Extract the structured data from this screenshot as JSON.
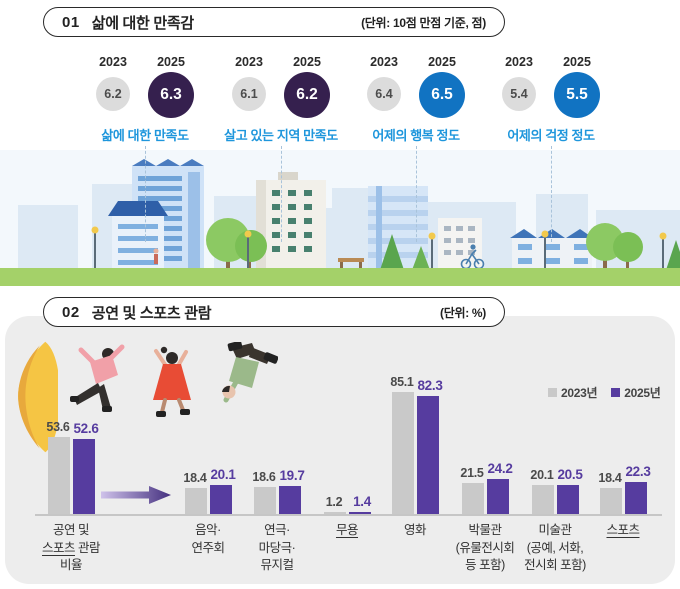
{
  "section1": {
    "number": "01",
    "title": "삶에 대한 만족감",
    "unit": "(단위: 10점 만점 기준, 점)",
    "year_left": "2023",
    "year_right": "2025",
    "groups": [
      {
        "label": "삶에 대한 만족도",
        "v2023": 6.2,
        "v2025": 6.3,
        "color_2025": "#35204E"
      },
      {
        "label": "살고 있는 지역 만족도",
        "v2023": 6.1,
        "v2025": 6.2,
        "color_2025": "#35204E"
      },
      {
        "label": "어제의 행복 정도",
        "v2023": 6.4,
        "v2025": 6.5,
        "color_2025": "#1173C2"
      },
      {
        "label": "어제의 걱정 정도",
        "v2023": 5.4,
        "v2025": 5.5,
        "color_2025": "#1173C2"
      }
    ]
  },
  "section2": {
    "number": "02",
    "title": "공연 및 스포츠 관람",
    "unit": "(단위: %)",
    "legend": [
      {
        "label": "2023년",
        "color": "#c9c9c9"
      },
      {
        "label": "2025년",
        "color": "#563C9F"
      }
    ],
    "groups": [
      {
        "v2023": 53.6,
        "v2025": 52.6,
        "label_lines": [
          [
            {
              "t": "공연 및"
            }
          ],
          [
            {
              "t": "스포츠",
              "u": true
            },
            {
              "t": " 관람"
            }
          ],
          [
            {
              "t": "비율"
            }
          ]
        ]
      },
      {
        "v2023": 18.4,
        "v2025": 20.1,
        "label_lines": [
          [
            {
              "t": "음악·"
            }
          ],
          [
            {
              "t": "연주회"
            }
          ]
        ]
      },
      {
        "v2023": 18.6,
        "v2025": 19.7,
        "label_lines": [
          [
            {
              "t": "연극·"
            }
          ],
          [
            {
              "t": "마당극·"
            }
          ],
          [
            {
              "t": "뮤지컬"
            }
          ]
        ]
      },
      {
        "v2023": 1.2,
        "v2025": 1.4,
        "label_lines": [
          [
            {
              "t": "무용",
              "u": true
            }
          ]
        ]
      },
      {
        "v2023": 85.1,
        "v2025": 82.3,
        "label_lines": [
          [
            {
              "t": "영화"
            }
          ]
        ]
      },
      {
        "v2023": 21.5,
        "v2025": 24.2,
        "label_lines": [
          [
            {
              "t": "박물관"
            }
          ],
          [
            {
              "t": "(유물전시회"
            }
          ],
          [
            {
              "t": "등 포함)"
            }
          ]
        ]
      },
      {
        "v2023": 20.1,
        "v2025": 20.5,
        "label_lines": [
          [
            {
              "t": "미술관"
            }
          ],
          [
            {
              "t": "(공예, 서화,"
            }
          ],
          [
            {
              "t": "전시회 포함)"
            }
          ]
        ]
      },
      {
        "v2023": 18.4,
        "v2025": 22.3,
        "label_lines": [
          [
            {
              "t": "스포츠",
              "u": true
            }
          ]
        ]
      }
    ],
    "colors": {
      "bar_2023": "#c9c9c9",
      "bar_2025": "#563C9F",
      "panel": "#EDEDED",
      "megaphone": "#F5C544"
    }
  },
  "chart_data": [
    {
      "type": "bar",
      "title": "삶에 대한 만족감",
      "ylabel": "점 (10점 만점 기준)",
      "categories": [
        "삶에 대한 만족도",
        "살고 있는 지역 만족도",
        "어제의 행복 정도",
        "어제의 걱정 정도"
      ],
      "series": [
        {
          "name": "2023",
          "values": [
            6.2,
            6.1,
            6.4,
            5.4
          ]
        },
        {
          "name": "2025",
          "values": [
            6.3,
            6.2,
            6.5,
            5.5
          ]
        }
      ],
      "grid": false
    },
    {
      "type": "bar",
      "title": "공연 및 스포츠 관람",
      "ylabel": "%",
      "categories": [
        "공연 및 스포츠 관람 비율",
        "음악·연주회",
        "연극·마당극·뮤지컬",
        "무용",
        "영화",
        "박물관(유물전시회 등 포함)",
        "미술관(공예, 서화, 전시회 포함)",
        "스포츠"
      ],
      "series": [
        {
          "name": "2023년",
          "values": [
            53.6,
            18.4,
            18.6,
            1.2,
            85.1,
            21.5,
            20.1,
            18.4
          ]
        },
        {
          "name": "2025년",
          "values": [
            52.6,
            20.1,
            19.7,
            1.4,
            82.3,
            24.2,
            20.5,
            22.3
          ]
        }
      ],
      "ylim": [
        0,
        90
      ],
      "grid": false,
      "legend_position": "top-right"
    }
  ]
}
